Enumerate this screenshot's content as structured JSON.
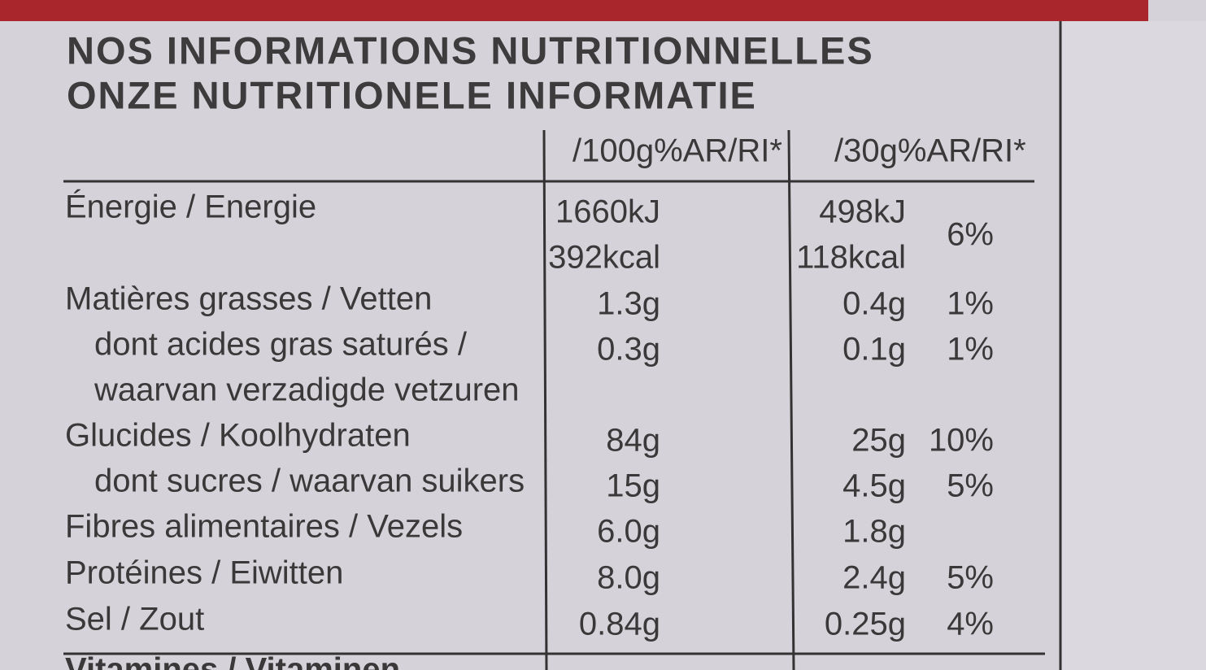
{
  "header": {
    "title_fr": "NOS INFORMATIONS NUTRITIONNELLES",
    "title_nl": "ONZE NUTRITIONELE INFORMATIE"
  },
  "table": {
    "columns": [
      "/100g%AR/RI*",
      "/30g%AR/RI*"
    ],
    "rows": [
      {
        "label": [
          "Énergie / Energie"
        ],
        "per_100g": [
          "1660kJ",
          "392kcal"
        ],
        "per_30g": [
          "498kJ",
          "118kcal"
        ],
        "ri": "6%"
      },
      {
        "label": [
          "Matières grasses / Vetten"
        ],
        "per_100g": [
          "1.3g"
        ],
        "per_30g": [
          "0.4g"
        ],
        "ri": "1%"
      },
      {
        "label": [
          "dont acides gras saturés /",
          "waarvan verzadigde vetzuren"
        ],
        "per_100g": [
          "0.3g"
        ],
        "per_30g": [
          "0.1g"
        ],
        "ri": "1%"
      },
      {
        "label": [
          "Glucides / Koolhydraten"
        ],
        "per_100g": [
          "84g"
        ],
        "per_30g": [
          "25g"
        ],
        "ri": "10%"
      },
      {
        "label": [
          "dont sucres / waarvan suikers"
        ],
        "per_100g": [
          "15g"
        ],
        "per_30g": [
          "4.5g"
        ],
        "ri": "5%"
      },
      {
        "label": [
          "Fibres alimentaires / Vezels"
        ],
        "per_100g": [
          "6.0g"
        ],
        "per_30g": [
          "1.8g"
        ]
      },
      {
        "label": [
          "Protéines / Eiwitten"
        ],
        "per_100g": [
          "8.0g"
        ],
        "per_30g": [
          "2.4g"
        ],
        "ri": "5%"
      },
      {
        "label": [
          "Sel / Zout"
        ],
        "per_100g": [
          "0.84g"
        ],
        "per_30g": [
          "0.25g"
        ],
        "ri": "4%"
      }
    ],
    "footer_row": "Vitamines / Vitaminen"
  }
}
